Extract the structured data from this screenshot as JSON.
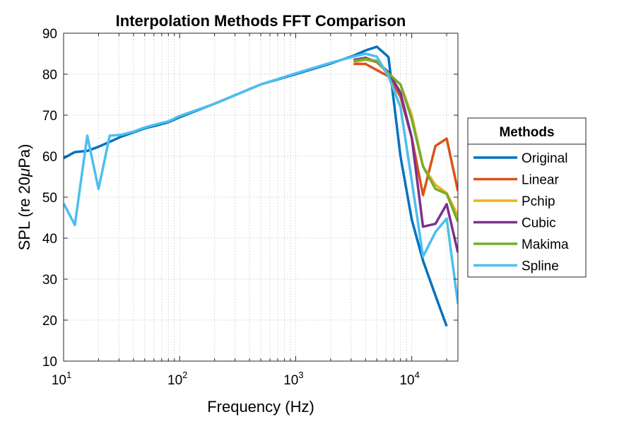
{
  "chart_data": {
    "type": "line",
    "title": "Interpolation Methods FFT Comparison",
    "xlabel": "Frequency (Hz)",
    "ylabel_prefix": "SPL (re 20",
    "ylabel_mu": "μ",
    "ylabel_suffix": "Pa)",
    "xscale": "log",
    "xlim": [
      10,
      25000
    ],
    "ylim": [
      10,
      90
    ],
    "yticks": [
      10,
      20,
      30,
      40,
      50,
      60,
      70,
      80,
      90
    ],
    "xticks": [
      {
        "value": 10,
        "base": "10",
        "exp": "1"
      },
      {
        "value": 100,
        "base": "10",
        "exp": "2"
      },
      {
        "value": 1000,
        "base": "10",
        "exp": "3"
      },
      {
        "value": 10000,
        "base": "10",
        "exp": "4"
      }
    ],
    "grid": true,
    "legend": {
      "title": "Methods",
      "position": "right-outside"
    },
    "series": [
      {
        "name": "Original",
        "color": "#0072BD",
        "x": [
          10,
          12.5,
          16,
          20,
          25,
          31.5,
          40,
          50,
          63,
          80,
          100,
          200,
          500,
          1000,
          2000,
          3150,
          4000,
          5000,
          6300,
          8000,
          10000,
          12500,
          16000,
          20000
        ],
        "y": [
          59.5,
          61,
          61.3,
          62.3,
          63.5,
          64.8,
          65.8,
          66.8,
          67.5,
          68.3,
          69.5,
          72.8,
          77.5,
          80,
          82.6,
          84.5,
          85.8,
          86.7,
          84.2,
          60,
          44.5,
          34.5,
          26,
          18.5
        ]
      },
      {
        "name": "Linear",
        "color": "#D95319",
        "x": [
          3150,
          4000,
          5000,
          6300,
          8000,
          10000,
          12500,
          16000,
          20000,
          25000
        ],
        "y": [
          82.5,
          82.5,
          81,
          79.5,
          74.5,
          64.5,
          50.5,
          62.5,
          64.3,
          51.5
        ]
      },
      {
        "name": "Pchip",
        "color": "#EDB120",
        "x": [
          3150,
          4000,
          5000,
          6300,
          8000,
          10000,
          12500,
          16000,
          20000,
          25000
        ],
        "y": [
          83,
          83.5,
          83,
          80,
          77.5,
          70,
          57.5,
          53,
          51,
          45.5
        ]
      },
      {
        "name": "Cubic",
        "color": "#7E2F8E",
        "x": [
          3150,
          4000,
          5000,
          6300,
          8000,
          10000,
          12500,
          16000,
          20000,
          25000
        ],
        "y": [
          83.5,
          84,
          83,
          80.5,
          75.5,
          64.5,
          42.8,
          43.5,
          48.3,
          36.5
        ]
      },
      {
        "name": "Makima",
        "color": "#77AC30",
        "x": [
          3150,
          4000,
          5000,
          6300,
          8000,
          10000,
          12500,
          16000,
          20000,
          25000
        ],
        "y": [
          83.2,
          83.7,
          83.2,
          80.2,
          77.5,
          69,
          57.5,
          52,
          50.8,
          44
        ]
      },
      {
        "name": "Spline",
        "color": "#4DBEEE",
        "x": [
          10,
          12.5,
          16,
          20,
          25,
          31.5,
          40,
          50,
          63,
          80,
          100,
          200,
          500,
          1000,
          2000,
          3150,
          4000,
          5000,
          6300,
          8000,
          10000,
          12500,
          16000,
          20000,
          25000
        ],
        "y": [
          48.5,
          43.2,
          65,
          52,
          65,
          65.2,
          66,
          67,
          67.8,
          68.5,
          69.8,
          72.8,
          77.5,
          80.2,
          82.8,
          84.3,
          85,
          84.3,
          79.5,
          72,
          54,
          35.5,
          41.5,
          44.8,
          24
        ]
      }
    ]
  }
}
